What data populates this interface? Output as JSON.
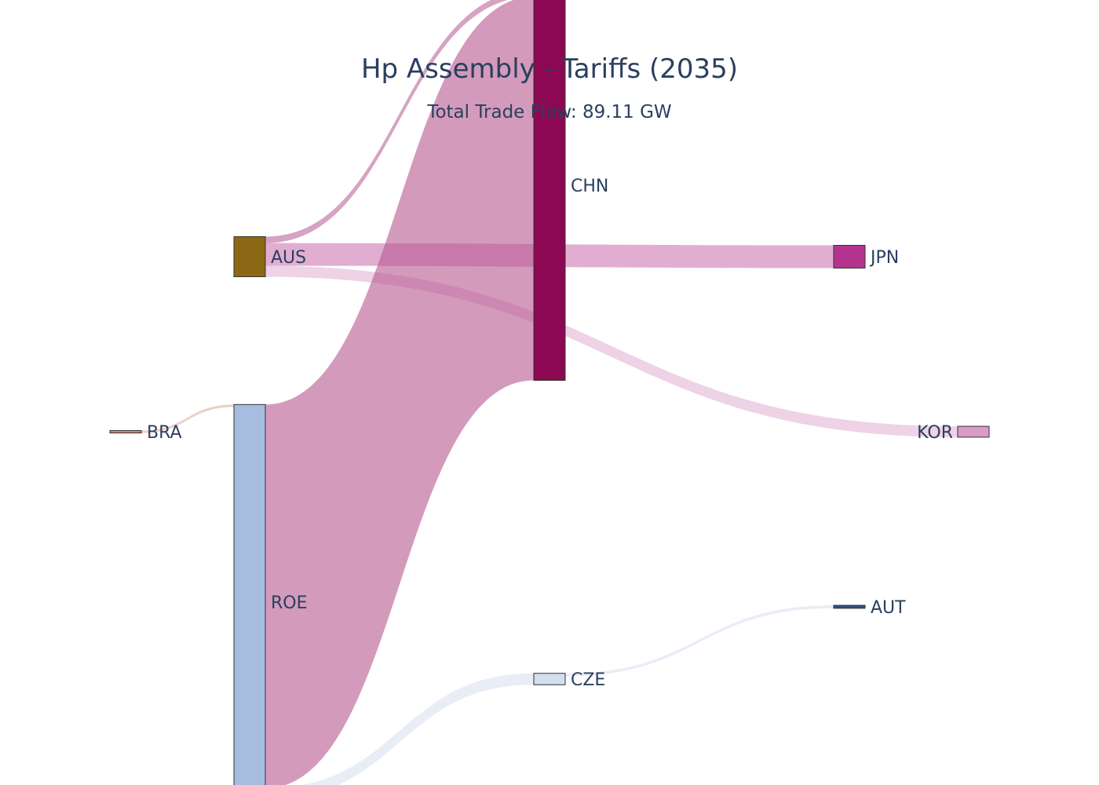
{
  "chart_data": {
    "type": "sankey",
    "title": "Hp Assembly - Tariffs (2035)",
    "subtitle": "Total Trade Flow: 89.11 GW",
    "nodes": [
      {
        "id": "AUS",
        "label": "AUS",
        "color": "#8B6914"
      },
      {
        "id": "BRA",
        "label": "BRA",
        "color": "#D4837E"
      },
      {
        "id": "ROE",
        "label": "ROE",
        "color": "#A6BDDF"
      },
      {
        "id": "CHN",
        "label": "CHN",
        "color": "#8C0852"
      },
      {
        "id": "CZE",
        "label": "CZE",
        "color": "#D3DEEE"
      },
      {
        "id": "JPN",
        "label": "JPN",
        "color": "#B5348F"
      },
      {
        "id": "KOR",
        "label": "KOR",
        "color": "#D99BC8"
      },
      {
        "id": "AUT",
        "label": "AUT",
        "color": "#2F4F86"
      }
    ],
    "links": [
      {
        "source": "AUS",
        "target": "CHN",
        "value": 1.3,
        "color": "#B5578F",
        "opacity": 0.55
      },
      {
        "source": "AUS",
        "target": "JPN",
        "value": 4.6,
        "color": "#C86CAD",
        "opacity": 0.55
      },
      {
        "source": "AUS",
        "target": "KOR",
        "value": 2.2,
        "color": "#D99BC8",
        "opacity": 0.45
      },
      {
        "source": "BRA",
        "target": "ROE",
        "value": 0.5,
        "color": "#D4837E",
        "opacity": 0.4
      },
      {
        "source": "ROE",
        "target": "CHN",
        "value": 77.6,
        "color": "#B5578F",
        "opacity": 0.6
      },
      {
        "source": "ROE",
        "target": "CZE",
        "value": 2.3,
        "color": "#C7D3E8",
        "opacity": 0.4
      },
      {
        "source": "CZE",
        "target": "AUT",
        "value": 0.6,
        "color": "#C7D3E8",
        "opacity": 0.4
      }
    ]
  }
}
